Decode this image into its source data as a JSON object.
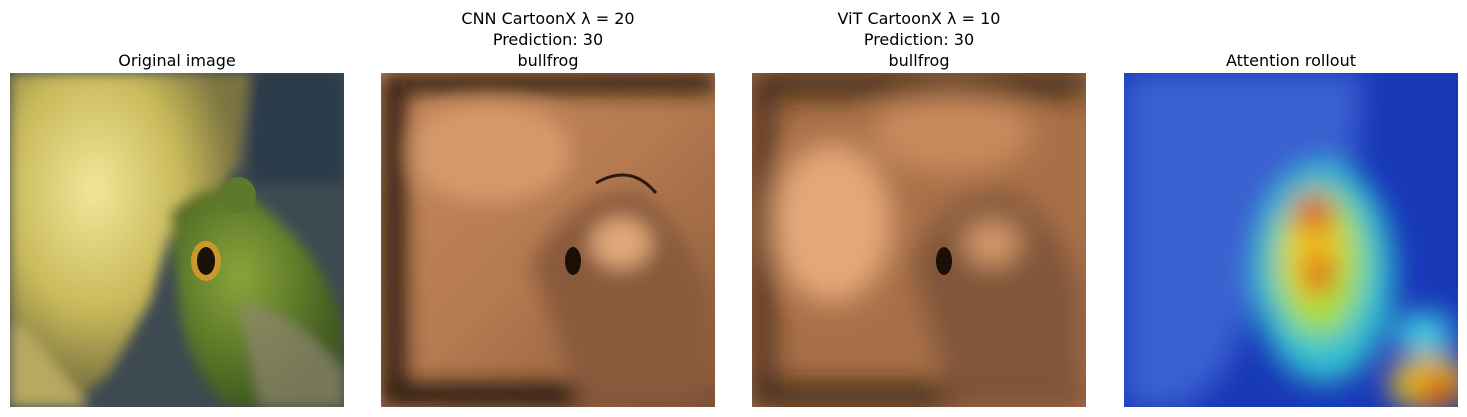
{
  "panels": [
    {
      "title": [
        "Original image"
      ]
    },
    {
      "title": [
        "CNN CartoonX λ = 20",
        "Prediction: 30",
        "bullfrog"
      ]
    },
    {
      "title": [
        "ViT CartoonX λ = 10",
        "Prediction: 30",
        "bullfrog"
      ]
    },
    {
      "title": [
        "Attention rollout"
      ]
    }
  ]
}
